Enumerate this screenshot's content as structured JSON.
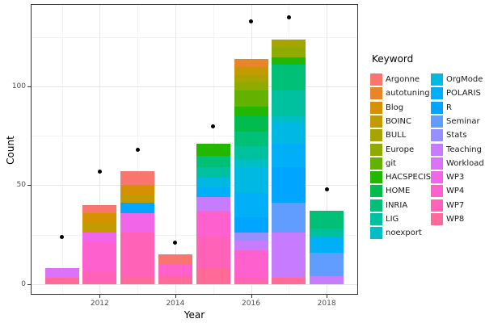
{
  "chart_data": {
    "type": "bar",
    "stacked": true,
    "orientation": "vertical",
    "title": "",
    "xlabel": "Year",
    "ylabel": "Count",
    "legend_title": "Keyword",
    "legend_position": "right",
    "grid": true,
    "xlim": [
      2010.2,
      2018.85
    ],
    "ylim": [
      -6.8,
      142.3
    ],
    "x_major_ticks": [
      2012,
      2014,
      2016,
      2018
    ],
    "x_minor_gridlines": [
      2011,
      2013,
      2015,
      2017
    ],
    "y_major_ticks": [
      0,
      50,
      100
    ],
    "y_minor_gridlines": [
      25,
      75,
      125
    ],
    "years": [
      2011,
      2012,
      2013,
      2014,
      2015,
      2016,
      2017,
      2018
    ],
    "keywords": [
      "Argonne",
      "autotuning",
      "Blog",
      "BOINC",
      "BULL",
      "Europe",
      "git",
      "HACSPECIS",
      "HOME",
      "INRIA",
      "LIG",
      "noexport",
      "OrgMode",
      "POLARIS",
      "R",
      "Seminar",
      "Stats",
      "Teaching",
      "Workload",
      "WP3",
      "WP4",
      "WP7",
      "WP8"
    ],
    "keyword_colors": {
      "Argonne": "#F8766D",
      "autotuning": "#E88526",
      "Blog": "#D59100",
      "BOINC": "#C19B00",
      "BULL": "#A7A400",
      "Europe": "#8FAA00",
      "git": "#64B200",
      "HACSPECIS": "#24B700",
      "HOME": "#00BB4E",
      "INRIA": "#00C078",
      "LIG": "#00C19F",
      "noexport": "#00BFC4",
      "OrgMode": "#00B9E3",
      "POLARIS": "#00AFF8",
      "R": "#00A5FF",
      "Seminar": "#619CFF",
      "Stats": "#9590FF",
      "Teaching": "#C77CFF",
      "Workload": "#DC71FA",
      "WP3": "#F166E8",
      "WP4": "#FE61CE",
      "WP7": "#FF62B6",
      "WP8": "#FF6A99"
    },
    "stacks_note": "segments listed bottom-to-top; stacking order is reverse alphabetical of keyword",
    "stacks": {
      "2011": [
        [
          "WP8",
          3
        ],
        [
          "Workload",
          5
        ]
      ],
      "2012": [
        [
          "WP8",
          1
        ],
        [
          "WP7",
          6
        ],
        [
          "WP4",
          14
        ],
        [
          "WP3",
          5
        ],
        [
          "BOINC",
          5
        ],
        [
          "Blog",
          5
        ],
        [
          "Argonne",
          4
        ]
      ],
      "2013": [
        [
          "WP8",
          3
        ],
        [
          "WP7",
          23
        ],
        [
          "WP3",
          10
        ],
        [
          "R",
          5
        ],
        [
          "BOINC",
          4
        ],
        [
          "Blog",
          5
        ],
        [
          "Argonne",
          7
        ]
      ],
      "2014": [
        [
          "WP8",
          3
        ],
        [
          "WP7",
          2
        ],
        [
          "WP4",
          5
        ],
        [
          "Argonne",
          5
        ]
      ],
      "2015": [
        [
          "WP8",
          8
        ],
        [
          "WP7",
          16
        ],
        [
          "WP4",
          13
        ],
        [
          "Teaching",
          7
        ],
        [
          "POLARIS",
          5
        ],
        [
          "OrgMode",
          5
        ],
        [
          "LIG",
          5
        ],
        [
          "INRIA",
          6
        ],
        [
          "HACSPECIS",
          6
        ]
      ],
      "2016": [
        [
          "WP8",
          1
        ],
        [
          "WP7",
          2
        ],
        [
          "WP4",
          14
        ],
        [
          "Teaching",
          5
        ],
        [
          "Stats",
          4
        ],
        [
          "R",
          8
        ],
        [
          "POLARIS",
          12
        ],
        [
          "OrgMode",
          13
        ],
        [
          "noexport",
          4
        ],
        [
          "LIG",
          7
        ],
        [
          "INRIA",
          7
        ],
        [
          "HOME",
          8
        ],
        [
          "HACSPECIS",
          5
        ],
        [
          "git",
          8
        ],
        [
          "Europe",
          4
        ],
        [
          "BULL",
          4
        ],
        [
          "BOINC",
          4
        ],
        [
          "autotuning",
          4
        ]
      ],
      "2017": [
        [
          "WP8",
          3
        ],
        [
          "Teaching",
          23
        ],
        [
          "Seminar",
          15
        ],
        [
          "R",
          18
        ],
        [
          "POLARIS",
          12
        ],
        [
          "OrgMode",
          11
        ],
        [
          "noexport",
          3
        ],
        [
          "LIG",
          13
        ],
        [
          "INRIA",
          13
        ],
        [
          "HACSPECIS",
          4
        ],
        [
          "Europe",
          5
        ],
        [
          "BULL",
          4
        ]
      ],
      "2018": [
        [
          "Teaching",
          4
        ],
        [
          "Seminar",
          12
        ],
        [
          "POLARIS",
          8
        ],
        [
          "LIG",
          4
        ],
        [
          "INRIA",
          9
        ]
      ]
    },
    "bar_totals": [
      8,
      40,
      57,
      15,
      71,
      114,
      124,
      37
    ],
    "point_overlay": {
      "color": "#000000",
      "values": [
        24,
        57,
        68,
        21,
        80,
        133,
        135,
        48
      ]
    }
  }
}
